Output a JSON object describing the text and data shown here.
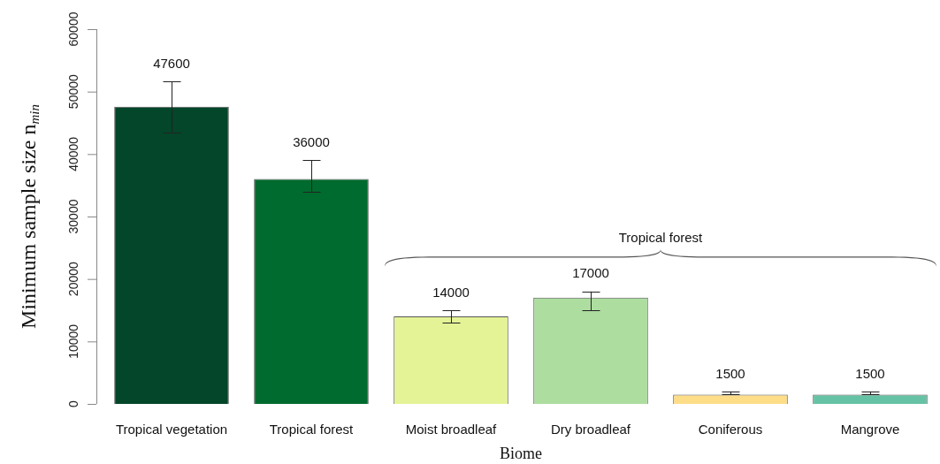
{
  "chart_data": {
    "type": "bar",
    "xlabel": "Biome",
    "ylabel": "Minimum sample size n$_{min}$",
    "categories": [
      "Tropical vegetation",
      "Tropical forest",
      "Moist broadleaf",
      "Dry broadleaf",
      "Coniferous",
      "Mangrove"
    ],
    "values": [
      47600,
      36000,
      14000,
      17000,
      1500,
      1500
    ],
    "colors": [
      "#03462a",
      "#006b2e",
      "#e4f396",
      "#addd9f",
      "#fedd88",
      "#66c2a4"
    ],
    "errors": [
      [
        43500,
        51600
      ],
      [
        34000,
        39000
      ],
      [
        13000,
        15000
      ],
      [
        15000,
        18000
      ],
      [
        1500,
        2000
      ],
      [
        1500,
        2000
      ]
    ],
    "ylim": [
      0,
      60000
    ],
    "yticks": [
      0,
      10000,
      20000,
      30000,
      40000,
      50000,
      60000
    ],
    "data_labels": true,
    "annotations": [
      "Tropical forest"
    ]
  }
}
